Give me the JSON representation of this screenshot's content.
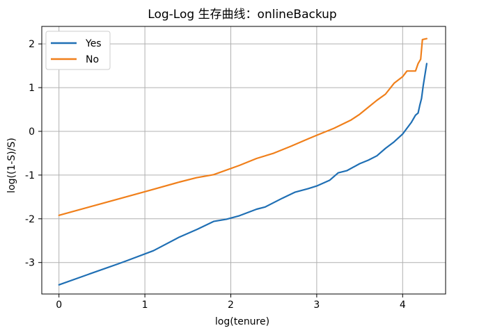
{
  "chart_data": {
    "type": "line",
    "title": "Log-Log 生存曲线：onlineBackup",
    "xlabel": "log(tenure)",
    "ylabel": "log((1-S)/S)",
    "xlim": [
      -0.2,
      4.5
    ],
    "ylim": [
      -3.72,
      2.4
    ],
    "xticks": [
      0,
      1,
      2,
      3,
      4
    ],
    "xtick_labels": [
      "0",
      "1",
      "2",
      "3",
      "4"
    ],
    "yticks": [
      2,
      1,
      0,
      -1,
      -2,
      -3
    ],
    "ytick_labels": [
      "2",
      "1",
      "0",
      "-1",
      "-2",
      "-3"
    ],
    "grid": true,
    "legend_position": "upper-left",
    "series": [
      {
        "name": "Yes",
        "color": "#1f6fb4",
        "points": [
          [
            0.0,
            -3.51
          ],
          [
            0.3,
            -3.3
          ],
          [
            0.69,
            -3.03
          ],
          [
            0.8,
            -2.95
          ],
          [
            1.1,
            -2.73
          ],
          [
            1.4,
            -2.42
          ],
          [
            1.61,
            -2.24
          ],
          [
            1.8,
            -2.06
          ],
          [
            1.95,
            -2.01
          ],
          [
            2.1,
            -1.93
          ],
          [
            2.3,
            -1.78
          ],
          [
            2.4,
            -1.73
          ],
          [
            2.6,
            -1.53
          ],
          [
            2.75,
            -1.39
          ],
          [
            2.9,
            -1.31
          ],
          [
            3.0,
            -1.25
          ],
          [
            3.15,
            -1.12
          ],
          [
            3.25,
            -0.95
          ],
          [
            3.35,
            -0.9
          ],
          [
            3.5,
            -0.74
          ],
          [
            3.6,
            -0.66
          ],
          [
            3.7,
            -0.56
          ],
          [
            3.8,
            -0.39
          ],
          [
            3.9,
            -0.24
          ],
          [
            4.0,
            -0.06
          ],
          [
            4.1,
            0.2
          ],
          [
            4.15,
            0.37
          ],
          [
            4.18,
            0.42
          ],
          [
            4.2,
            0.6
          ],
          [
            4.22,
            0.75
          ],
          [
            4.24,
            1.05
          ],
          [
            4.26,
            1.3
          ],
          [
            4.28,
            1.55
          ]
        ]
      },
      {
        "name": "No",
        "color": "#f07f1a",
        "points": [
          [
            0.0,
            -1.92
          ],
          [
            0.5,
            -1.65
          ],
          [
            1.0,
            -1.38
          ],
          [
            1.4,
            -1.16
          ],
          [
            1.6,
            -1.06
          ],
          [
            1.8,
            -0.99
          ],
          [
            2.1,
            -0.78
          ],
          [
            2.3,
            -0.62
          ],
          [
            2.5,
            -0.5
          ],
          [
            2.7,
            -0.34
          ],
          [
            2.9,
            -0.17
          ],
          [
            3.0,
            -0.09
          ],
          [
            3.2,
            0.07
          ],
          [
            3.4,
            0.26
          ],
          [
            3.5,
            0.39
          ],
          [
            3.6,
            0.55
          ],
          [
            3.7,
            0.71
          ],
          [
            3.8,
            0.85
          ],
          [
            3.9,
            1.1
          ],
          [
            4.0,
            1.25
          ],
          [
            4.05,
            1.38
          ],
          [
            4.15,
            1.38
          ],
          [
            4.18,
            1.55
          ],
          [
            4.21,
            1.65
          ],
          [
            4.23,
            2.1
          ],
          [
            4.28,
            2.12
          ]
        ]
      }
    ]
  }
}
